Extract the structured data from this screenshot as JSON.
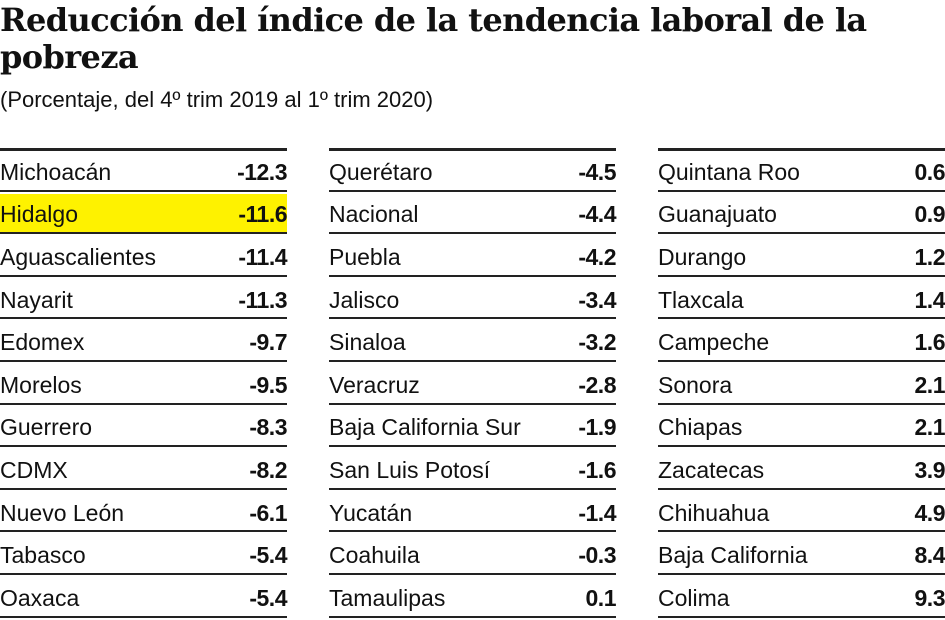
{
  "title": "Reducción del índice de la tendencia laboral de la pobreza",
  "subtitle": "(Porcentaje, del 4º trim 2019  al 1º trim 2020)",
  "colors": {
    "highlight": "#fef200",
    "rule": "#222222",
    "text": "#111111"
  },
  "chart_data": {
    "type": "table",
    "title": "Reducción del índice de la tendencia laboral de la pobreza",
    "subtitle": "(Porcentaje, del 4º trim 2019  al 1º trim 2020)",
    "highlighted": "Hidalgo",
    "columns": [
      [
        {
          "name": "Michoacán",
          "value": "-12.3"
        },
        {
          "name": "Hidalgo",
          "value": "-11.6"
        },
        {
          "name": "Aguascalientes",
          "value": "-11.4"
        },
        {
          "name": "Nayarit",
          "value": "-11.3"
        },
        {
          "name": "Edomex",
          "value": "-9.7"
        },
        {
          "name": "Morelos",
          "value": "-9.5"
        },
        {
          "name": "Guerrero",
          "value": "-8.3"
        },
        {
          "name": "CDMX",
          "value": "-8.2"
        },
        {
          "name": "Nuevo León",
          "value": "-6.1"
        },
        {
          "name": "Tabasco",
          "value": "-5.4"
        },
        {
          "name": "Oaxaca",
          "value": "-5.4"
        }
      ],
      [
        {
          "name": "Querétaro",
          "value": "-4.5"
        },
        {
          "name": "Nacional",
          "value": "-4.4"
        },
        {
          "name": "Puebla",
          "value": "-4.2"
        },
        {
          "name": "Jalisco",
          "value": "-3.4"
        },
        {
          "name": "Sinaloa",
          "value": "-3.2"
        },
        {
          "name": "Veracruz",
          "value": "-2.8"
        },
        {
          "name": "Baja California Sur",
          "value": "-1.9"
        },
        {
          "name": "San Luis Potosí",
          "value": "-1.6"
        },
        {
          "name": "Yucatán",
          "value": "-1.4"
        },
        {
          "name": "Coahuila",
          "value": "-0.3"
        },
        {
          "name": "Tamaulipas",
          "value": "0.1"
        }
      ],
      [
        {
          "name": "Quintana Roo",
          "value": "0.6"
        },
        {
          "name": "Guanajuato",
          "value": "0.9"
        },
        {
          "name": "Durango",
          "value": "1.2"
        },
        {
          "name": "Tlaxcala",
          "value": "1.4"
        },
        {
          "name": "Campeche",
          "value": "1.6"
        },
        {
          "name": "Sonora",
          "value": "2.1"
        },
        {
          "name": "Chiapas",
          "value": "2.1"
        },
        {
          "name": "Zacatecas",
          "value": "3.9"
        },
        {
          "name": "Chihuahua",
          "value": "4.9"
        },
        {
          "name": "Baja California",
          "value": "8.4"
        },
        {
          "name": "Colima",
          "value": "9.3"
        }
      ]
    ]
  }
}
